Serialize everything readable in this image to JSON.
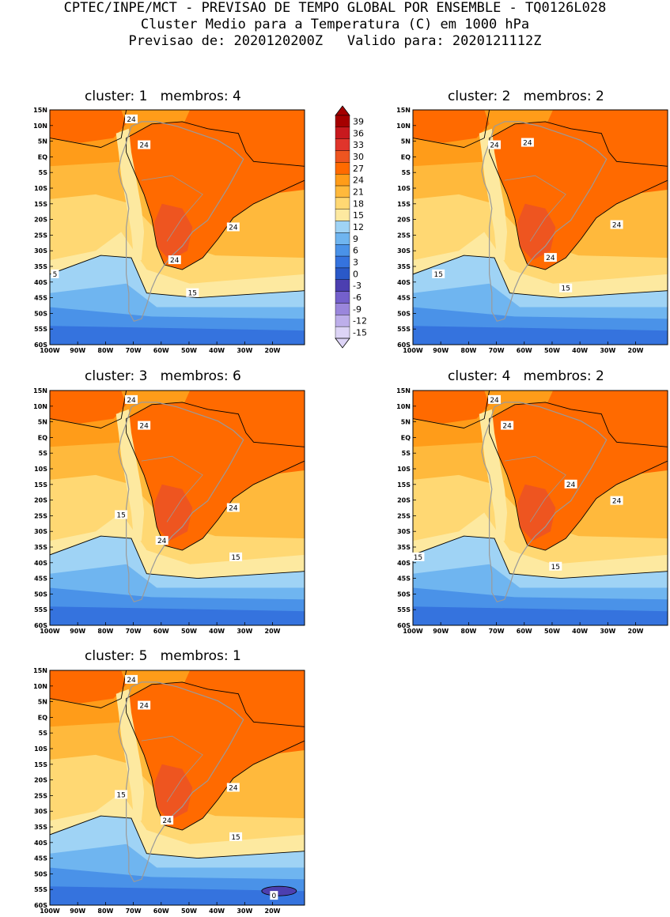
{
  "header": {
    "line1": "CPTEC/INPE/MCT - PREVISAO DE TEMPO GLOBAL POR ENSEMBLE - TQ0126L028",
    "line2": "Cluster Medio para a Temperatura (C) em 1000 hPa",
    "line3": "Previsao de: 2020120200Z   Valido para: 2020121112Z"
  },
  "lat_ticks": [
    "15N",
    "10N",
    "5N",
    "EQ",
    "5S",
    "10S",
    "15S",
    "20S",
    "25S",
    "30S",
    "35S",
    "40S",
    "45S",
    "50S",
    "55S",
    "60S"
  ],
  "lon_ticks": [
    "100W",
    "90W",
    "80W",
    "70W",
    "60W",
    "50W",
    "40W",
    "30W",
    "20W"
  ],
  "colorbar": {
    "levels": [
      "39",
      "36",
      "33",
      "30",
      "27",
      "24",
      "21",
      "18",
      "15",
      "12",
      "9",
      "6",
      "3",
      "0",
      "-3",
      "-6",
      "-9",
      "-12",
      "-15"
    ],
    "colors": [
      "#a50000",
      "#c8191e",
      "#e0352b",
      "#ee5520",
      "#ff6a00",
      "#ff9c19",
      "#ffb93c",
      "#ffd873",
      "#fde9a0",
      "#9fd3f5",
      "#6fb5f0",
      "#4a92e8",
      "#3573de",
      "#2a59c8",
      "#4c3fb0",
      "#7460cc",
      "#9a86dc",
      "#bdaeea",
      "#ddd4f6"
    ]
  },
  "panels": [
    {
      "title": "cluster: 1   membros: 4",
      "labels": [
        "24",
        "24",
        "24",
        "24",
        "5",
        "15"
      ]
    },
    {
      "title": "cluster: 2   membros: 2",
      "labels": [
        "24",
        "24",
        "24",
        "24",
        "15",
        "15"
      ]
    },
    {
      "title": "cluster: 3   membros: 6",
      "labels": [
        "24",
        "24",
        "24",
        "24",
        "15",
        "15"
      ]
    },
    {
      "title": "cluster: 4   membros: 2",
      "labels": [
        "24",
        "24",
        "24",
        "24",
        "15",
        "15"
      ]
    },
    {
      "title": "cluster: 5   membros: 1",
      "labels": [
        "24",
        "24",
        "24",
        "24",
        "15",
        "15",
        "0"
      ]
    }
  ]
}
